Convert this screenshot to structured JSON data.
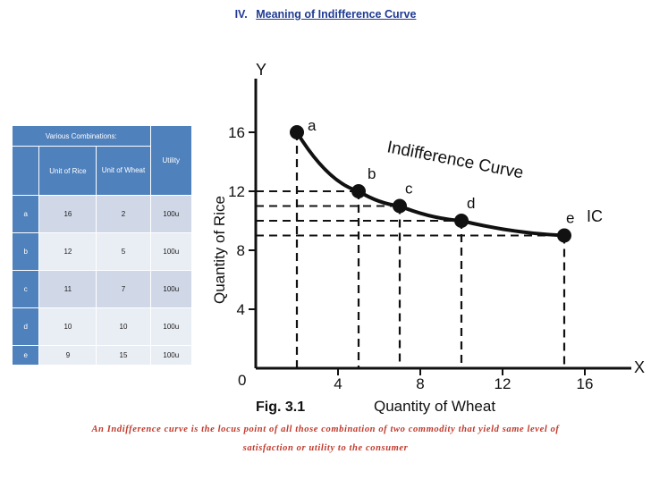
{
  "heading": {
    "number": "IV.",
    "title": "Meaning of Indifference Curve"
  },
  "table": {
    "header_top": "Various Combinations:",
    "col_rice": "Unit of Rice",
    "col_wheat": "Unit of Wheat",
    "col_utility": "Utility",
    "rows": [
      {
        "label": "a",
        "rice": "16",
        "wheat": "2",
        "utility": "100u"
      },
      {
        "label": "b",
        "rice": "12",
        "wheat": "5",
        "utility": "100u"
      },
      {
        "label": "c",
        "rice": "11",
        "wheat": "7",
        "utility": "100u"
      },
      {
        "label": "d",
        "rice": "10",
        "wheat": "10",
        "utility": "100u"
      },
      {
        "label": "e",
        "rice": "9",
        "wheat": "15",
        "utility": "100u"
      }
    ]
  },
  "chart_data": {
    "type": "line",
    "xlabel": "Quantity of Wheat",
    "ylabel": "Quantity of Rice",
    "x_axis_letter": "X",
    "y_axis_letter": "Y",
    "origin_label": "0",
    "xlim": [
      0,
      16
    ],
    "ylim": [
      0,
      16
    ],
    "x_ticks": [
      4,
      8,
      12,
      16
    ],
    "y_ticks": [
      4,
      8,
      12,
      16
    ],
    "curve_label": "Indifference Curve",
    "end_label": "IC",
    "figure_label": "Fig. 3.1",
    "points": [
      {
        "label": "a",
        "x": 2,
        "y": 16
      },
      {
        "label": "b",
        "x": 5,
        "y": 12
      },
      {
        "label": "c",
        "x": 7,
        "y": 11
      },
      {
        "label": "d",
        "x": 10,
        "y": 10
      },
      {
        "label": "e",
        "x": 15,
        "y": 9
      }
    ],
    "colors": {
      "ink": "#111111"
    }
  },
  "caption": {
    "line1": "An Indifference curve is the locus point of all those combination of two commodity that yield same level of",
    "line2": "satisfaction or utility to the consumer"
  }
}
